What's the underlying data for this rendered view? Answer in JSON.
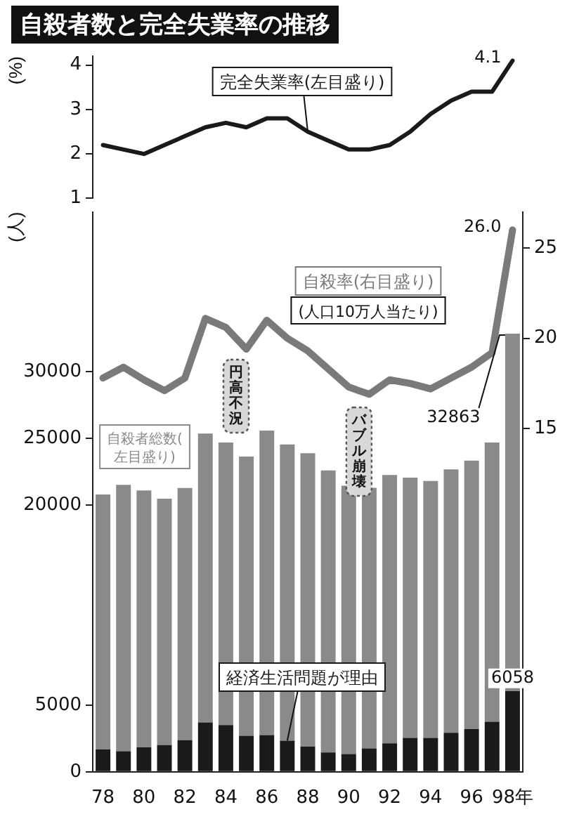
{
  "chart_data": [
    {
      "type": "line",
      "title": "自殺者数と完全失業率の推移",
      "categories": [
        null,
        null,
        null,
        null,
        null,
        null,
        null,
        null,
        null,
        null,
        null,
        null,
        null,
        null,
        null,
        null,
        null,
        null,
        null,
        null,
        null
      ],
      "series": [
        {
          "name": "完全失業率(左目盛り)",
          "color": "#1a1a1a",
          "values": [
            2.2,
            2.1,
            2.0,
            2.2,
            2.4,
            2.6,
            2.7,
            2.6,
            2.8,
            2.8,
            2.5,
            2.3,
            2.1,
            2.1,
            2.2,
            2.5,
            2.9,
            3.2,
            3.4,
            3.4,
            4.1
          ],
          "value_labels": [
            null,
            null,
            null,
            null,
            null,
            null,
            null,
            null,
            null,
            null,
            null,
            null,
            null,
            null,
            null,
            null,
            null,
            null,
            null,
            null,
            "4.1"
          ]
        }
      ],
      "ylabel": "(%)",
      "ylim": [
        1,
        4.2
      ],
      "yticks": [
        1,
        2,
        3,
        4
      ],
      "tick_labels": "y",
      "marker": "none",
      "line_style": "solid",
      "grid": false,
      "legend": false
    },
    {
      "type": "bar",
      "categories": [
        "78",
        null,
        "80",
        null,
        "82",
        null,
        "84",
        null,
        "86",
        null,
        "88",
        null,
        "90",
        null,
        "92",
        null,
        "94",
        null,
        "96",
        null,
        "98年"
      ],
      "series": [
        {
          "name": "経済生活問題が理由",
          "color": "#1a1a1a",
          "values": [
            1680,
            1550,
            1830,
            2000,
            2380,
            3700,
            3500,
            2700,
            2750,
            2330,
            1880,
            1450,
            1330,
            1750,
            2130,
            2550,
            2550,
            2930,
            3200,
            3750,
            6058
          ],
          "value_labels": [
            null,
            null,
            null,
            null,
            null,
            null,
            null,
            null,
            null,
            null,
            null,
            null,
            null,
            null,
            null,
            null,
            null,
            null,
            null,
            null,
            "6058"
          ]
        },
        {
          "name": "自殺者総数(左目盛り)",
          "color": "#8a8a8a",
          "values": [
            19120,
            19980,
            19270,
            18490,
            18910,
            21670,
            21200,
            20950,
            22850,
            22230,
            22020,
            21150,
            20130,
            19550,
            20130,
            19520,
            19270,
            19750,
            20140,
            20950,
            26805
          ]
        },
        {
          "type": "line",
          "name": "自殺率(右目盛り)",
          "color": "#7a7a7a",
          "axis": "y2",
          "values": [
            17.8,
            18.4,
            17.7,
            17.1,
            17.8,
            21.1,
            20.6,
            19.4,
            21.0,
            20.0,
            19.3,
            18.3,
            17.3,
            16.9,
            17.7,
            17.5,
            17.2,
            17.8,
            18.4,
            19.2,
            26.0
          ],
          "value_labels": [
            null,
            null,
            null,
            null,
            null,
            null,
            null,
            null,
            null,
            null,
            null,
            null,
            null,
            null,
            null,
            null,
            null,
            null,
            null,
            null,
            "26.0"
          ]
        }
      ],
      "stacked": true,
      "totals": [
        null,
        null,
        null,
        null,
        null,
        null,
        null,
        null,
        null,
        null,
        null,
        null,
        null,
        null,
        null,
        null,
        null,
        null,
        null,
        null,
        "32863"
      ],
      "ylabel": "(人)",
      "ylim": [
        0,
        42000
      ],
      "yticks": [
        0,
        5000,
        20000,
        25000,
        30000
      ],
      "y2lim": [
        -4,
        27
      ],
      "y2ticks": [
        15,
        20,
        25
      ],
      "annotations": [
        "(人口10万人当たり)",
        "円高不況",
        "バブル崩壊"
      ],
      "marker": "none",
      "line_style": "solid",
      "grid": false,
      "legend": false
    }
  ]
}
